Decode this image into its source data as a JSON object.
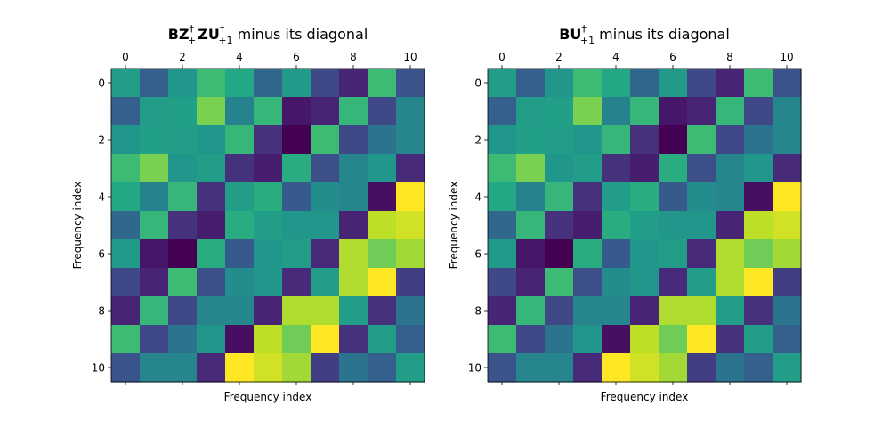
{
  "chart_data": [
    {
      "type": "heatmap",
      "title": "$\\mathbf{BZ}_+^\\dagger\\,\\mathbf{ZU}_{+1}^\\dagger$ minus its diagonal",
      "title_parts": [
        "BZ",
        "†",
        "+",
        "ZU",
        "†",
        "+1",
        " minus its diagonal"
      ],
      "xlabel": "Frequency index",
      "ylabel": "Frequency index",
      "xtick_labels": [
        "0",
        "2",
        "4",
        "6",
        "8",
        "10"
      ],
      "ytick_labels": [
        "0",
        "2",
        "4",
        "6",
        "8",
        "10"
      ],
      "colormap": "viridis",
      "value_range": [
        0,
        1
      ],
      "values": [
        [
          0.55,
          0.3,
          0.52,
          0.68,
          0.6,
          0.33,
          0.54,
          0.22,
          0.1,
          0.68,
          0.26
        ],
        [
          0.3,
          0.55,
          0.56,
          0.8,
          0.44,
          0.66,
          0.06,
          0.1,
          0.66,
          0.22,
          0.45
        ],
        [
          0.52,
          0.56,
          0.55,
          0.52,
          0.66,
          0.14,
          0.0,
          0.68,
          0.22,
          0.38,
          0.45
        ],
        [
          0.68,
          0.8,
          0.52,
          0.55,
          0.14,
          0.08,
          0.62,
          0.24,
          0.45,
          0.52,
          0.12
        ],
        [
          0.6,
          0.44,
          0.66,
          0.14,
          0.55,
          0.62,
          0.28,
          0.48,
          0.46,
          0.04,
          1.0
        ],
        [
          0.33,
          0.66,
          0.14,
          0.08,
          0.62,
          0.55,
          0.52,
          0.52,
          0.1,
          0.9,
          0.93
        ],
        [
          0.54,
          0.06,
          0.0,
          0.62,
          0.28,
          0.52,
          0.55,
          0.12,
          0.88,
          0.78,
          0.86
        ],
        [
          0.22,
          0.1,
          0.68,
          0.24,
          0.48,
          0.52,
          0.12,
          0.55,
          0.88,
          1.0,
          0.18
        ],
        [
          0.1,
          0.66,
          0.22,
          0.45,
          0.46,
          0.1,
          0.88,
          0.88,
          0.55,
          0.14,
          0.38
        ],
        [
          0.68,
          0.22,
          0.38,
          0.52,
          0.04,
          0.9,
          0.78,
          1.0,
          0.14,
          0.55,
          0.3
        ],
        [
          0.26,
          0.45,
          0.45,
          0.12,
          1.0,
          0.93,
          0.86,
          0.18,
          0.38,
          0.3,
          0.55
        ]
      ]
    },
    {
      "type": "heatmap",
      "title": "$\\mathbf{BU}_{+1}^\\dagger$ minus its diagonal",
      "title_parts": [
        "BU",
        "†",
        "+1",
        " minus its diagonal"
      ],
      "xlabel": "Frequency index",
      "ylabel": "Frequency index",
      "xtick_labels": [
        "0",
        "2",
        "4",
        "6",
        "8",
        "10"
      ],
      "ytick_labels": [
        "0",
        "2",
        "4",
        "6",
        "8",
        "10"
      ],
      "colormap": "viridis",
      "value_range": [
        0,
        1
      ],
      "values": [
        [
          0.55,
          0.3,
          0.52,
          0.68,
          0.6,
          0.33,
          0.54,
          0.22,
          0.1,
          0.68,
          0.26
        ],
        [
          0.3,
          0.55,
          0.56,
          0.8,
          0.44,
          0.66,
          0.06,
          0.1,
          0.66,
          0.22,
          0.45
        ],
        [
          0.52,
          0.56,
          0.55,
          0.52,
          0.66,
          0.14,
          0.0,
          0.68,
          0.22,
          0.38,
          0.45
        ],
        [
          0.68,
          0.8,
          0.52,
          0.55,
          0.14,
          0.08,
          0.62,
          0.24,
          0.45,
          0.52,
          0.12
        ],
        [
          0.6,
          0.44,
          0.66,
          0.14,
          0.55,
          0.62,
          0.28,
          0.48,
          0.46,
          0.04,
          1.0
        ],
        [
          0.33,
          0.66,
          0.14,
          0.08,
          0.62,
          0.55,
          0.52,
          0.52,
          0.1,
          0.9,
          0.93
        ],
        [
          0.54,
          0.06,
          0.0,
          0.62,
          0.28,
          0.52,
          0.55,
          0.12,
          0.88,
          0.78,
          0.86
        ],
        [
          0.22,
          0.1,
          0.68,
          0.24,
          0.48,
          0.52,
          0.12,
          0.55,
          0.88,
          1.0,
          0.18
        ],
        [
          0.1,
          0.66,
          0.22,
          0.45,
          0.46,
          0.1,
          0.88,
          0.88,
          0.55,
          0.14,
          0.38
        ],
        [
          0.68,
          0.22,
          0.38,
          0.52,
          0.04,
          0.9,
          0.78,
          1.0,
          0.14,
          0.55,
          0.3
        ],
        [
          0.26,
          0.45,
          0.45,
          0.12,
          1.0,
          0.93,
          0.86,
          0.18,
          0.38,
          0.3,
          0.55
        ]
      ]
    }
  ]
}
